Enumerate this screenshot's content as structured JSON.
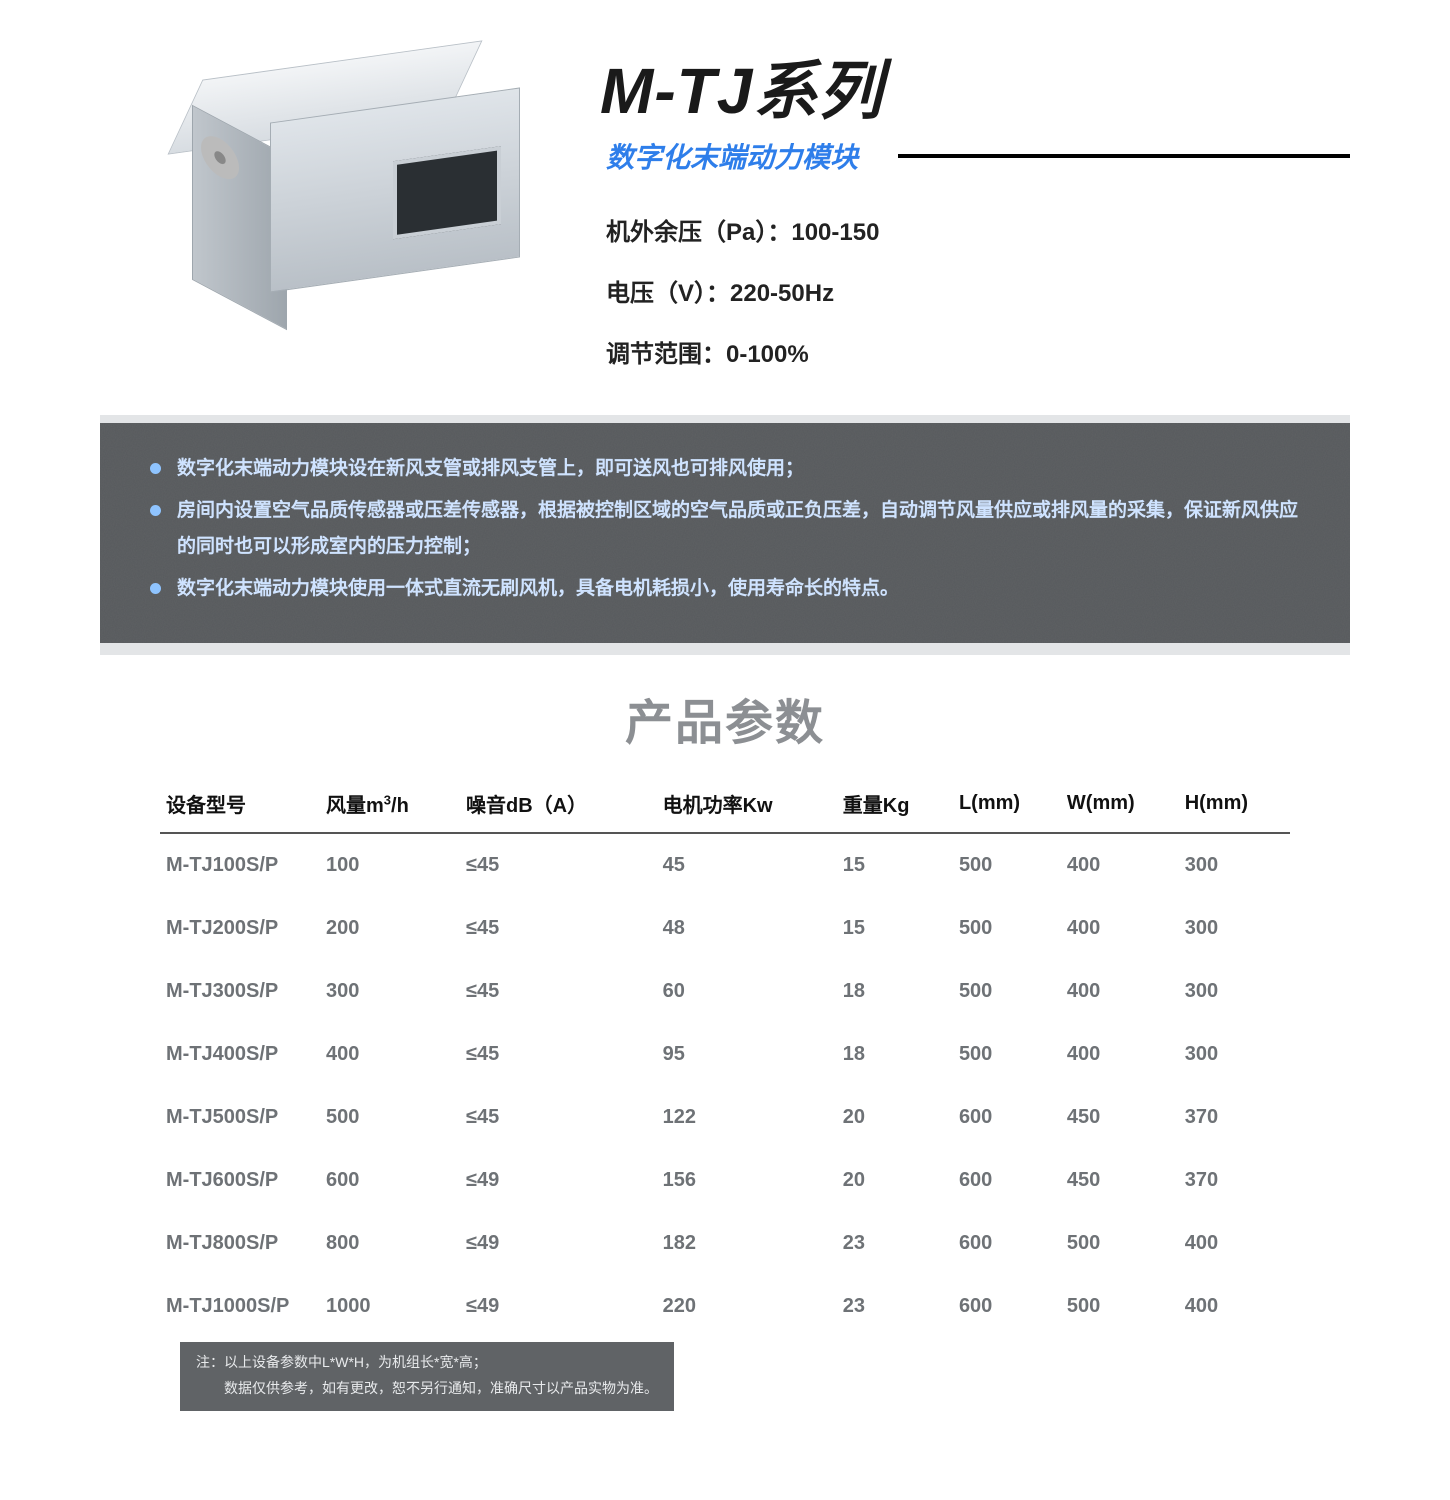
{
  "hero": {
    "title": "M-TJ系列",
    "subtitle": "数字化末端动力模块",
    "specs": [
      "机外余压（Pa）：100-150",
      "电压（V）：220-50Hz",
      "调节范围：0-100%"
    ]
  },
  "features": [
    "数字化末端动力模块设在新风支管或排风支管上，即可送风也可排风使用；",
    "房间内设置空气品质传感器或压差传感器，根据被控制区域的空气品质或正负压差，自动调节风量供应或排风量的采集，保证新风供应的同时也可以形成室内的压力控制；",
    "数字化末端动力模块使用一体式直流无刷风机，具备电机耗损小，使用寿命长的特点。"
  ],
  "params": {
    "section_title": "产品参数",
    "columns": [
      "设备型号",
      "风量m³/h",
      "噪音dB（A）",
      "电机功率Kw",
      "重量Kg",
      "L(mm)",
      "W(mm)",
      "H(mm)"
    ],
    "rows": [
      [
        "M-TJ100S/P",
        "100",
        "≤45",
        "45",
        "15",
        "500",
        "400",
        "300"
      ],
      [
        "M-TJ200S/P",
        "200",
        "≤45",
        "48",
        "15",
        "500",
        "400",
        "300"
      ],
      [
        "M-TJ300S/P",
        "300",
        "≤45",
        "60",
        "18",
        "500",
        "400",
        "300"
      ],
      [
        "M-TJ400S/P",
        "400",
        "≤45",
        "95",
        "18",
        "500",
        "400",
        "300"
      ],
      [
        "M-TJ500S/P",
        "500",
        "≤45",
        "122",
        "20",
        "600",
        "450",
        "370"
      ],
      [
        "M-TJ600S/P",
        "600",
        "≤49",
        "156",
        "20",
        "600",
        "450",
        "370"
      ],
      [
        "M-TJ800S/P",
        "800",
        "≤49",
        "182",
        "23",
        "600",
        "500",
        "400"
      ],
      [
        "M-TJ1000S/P",
        "1000",
        "≤49",
        "220",
        "23",
        "600",
        "500",
        "400"
      ]
    ],
    "footnote_lines": [
      "注：以上设备参数中L*W*H，为机组长*宽*高；",
      "数据仅供参考，如有更改，恕不另行通知，准确尺寸以产品实物为准。"
    ]
  },
  "colors": {
    "accent_blue": "#2e7eea",
    "band_bg": "#56595c",
    "band_text": "#cfe3ff",
    "muted": "#6e7276",
    "title_grey": "#8c8f93"
  }
}
